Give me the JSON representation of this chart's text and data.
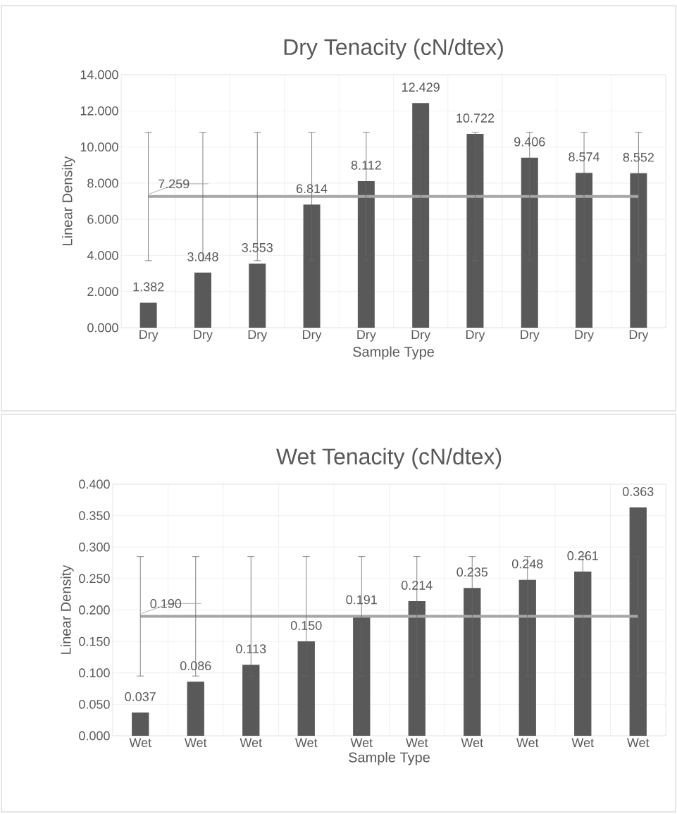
{
  "chart_data": [
    {
      "type": "bar",
      "title": "Dry Tenacity (cN/dtex)",
      "xlabel": "Sample Type",
      "ylabel": "Linear Density",
      "categories": [
        "Dry",
        "Dry",
        "Dry",
        "Dry",
        "Dry",
        "Dry",
        "Dry",
        "Dry",
        "Dry",
        "Dry"
      ],
      "series": [
        {
          "color": "#595959",
          "values": [
            1.382,
            3.048,
            3.553,
            6.814,
            8.112,
            12.429,
            10.722,
            9.406,
            8.574,
            8.552
          ],
          "value_labels": [
            "1.382",
            "3.048",
            "3.553",
            "6.814",
            "8.112",
            "12.429",
            "10.722",
            "9.406",
            "8.574",
            "8.552"
          ]
        },
        {
          "type": "line",
          "color": "#a6a6a6",
          "values": [
            7.259,
            7.259,
            7.259,
            7.259,
            7.259,
            7.259,
            7.259,
            7.259,
            7.259,
            7.259
          ],
          "errors": [
            3.55,
            3.55,
            3.55,
            3.55,
            3.55,
            3.55,
            3.55,
            3.55,
            3.55,
            3.55
          ],
          "value_labels": [
            "7.259",
            null,
            null,
            null,
            null,
            null,
            null,
            null,
            null,
            null
          ]
        }
      ],
      "ylim": [
        0,
        14
      ],
      "yticks": [
        {
          "value": 0,
          "label": "0.000"
        },
        {
          "value": 2,
          "label": "2.000"
        },
        {
          "value": 4,
          "label": "4.000"
        },
        {
          "value": 6,
          "label": "6.000"
        },
        {
          "value": 8,
          "label": "8.000"
        },
        {
          "value": 10,
          "label": "10.000"
        },
        {
          "value": 12,
          "label": "12.000"
        },
        {
          "value": 14,
          "label": "14.000"
        }
      ],
      "grid": true,
      "marker": "none"
    },
    {
      "type": "bar",
      "title": "Wet Tenacity (cN/dtex)",
      "xlabel": "Sample Type",
      "ylabel": "Linear Density",
      "categories": [
        "Wet",
        "Wet",
        "Wet",
        "Wet",
        "Wet",
        "Wet",
        "Wet",
        "Wet",
        "Wet",
        "Wet"
      ],
      "series": [
        {
          "color": "#595959",
          "values": [
            0.037,
            0.086,
            0.113,
            0.15,
            0.191,
            0.214,
            0.235,
            0.248,
            0.261,
            0.363
          ],
          "value_labels": [
            "0.037",
            "0.086",
            "0.113",
            "0.150",
            "0.191",
            "0.214",
            "0.235",
            "0.248",
            "0.261",
            "0.363"
          ]
        },
        {
          "type": "line",
          "color": "#a6a6a6",
          "values": [
            0.19,
            0.19,
            0.19,
            0.19,
            0.19,
            0.19,
            0.19,
            0.19,
            0.19,
            0.19
          ],
          "errors": [
            0.095,
            0.095,
            0.095,
            0.095,
            0.095,
            0.095,
            0.095,
            0.095,
            0.095,
            0.095
          ],
          "value_labels": [
            "0.190",
            null,
            null,
            null,
            null,
            null,
            null,
            null,
            null,
            null
          ]
        }
      ],
      "ylim": [
        0,
        0.4
      ],
      "yticks": [
        {
          "value": 0,
          "label": "0.000"
        },
        {
          "value": 0.05,
          "label": "0.050"
        },
        {
          "value": 0.1,
          "label": "0.100"
        },
        {
          "value": 0.15,
          "label": "0.150"
        },
        {
          "value": 0.2,
          "label": "0.200"
        },
        {
          "value": 0.25,
          "label": "0.250"
        },
        {
          "value": 0.3,
          "label": "0.300"
        },
        {
          "value": 0.35,
          "label": "0.350"
        },
        {
          "value": 0.4,
          "label": "0.400"
        }
      ],
      "grid": true,
      "marker": "none"
    }
  ]
}
